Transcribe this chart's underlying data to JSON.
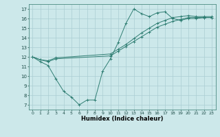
{
  "title": "",
  "xlabel": "Humidex (Indice chaleur)",
  "bg_color": "#cce8ea",
  "grid_color": "#aacdd2",
  "line_color": "#2e7d72",
  "xlim": [
    -0.5,
    23.5
  ],
  "ylim": [
    6.5,
    17.5
  ],
  "xticks": [
    0,
    1,
    2,
    3,
    4,
    5,
    6,
    7,
    8,
    9,
    10,
    11,
    12,
    13,
    14,
    15,
    16,
    17,
    18,
    19,
    20,
    21,
    22,
    23
  ],
  "yticks": [
    7,
    8,
    9,
    10,
    11,
    12,
    13,
    14,
    15,
    16,
    17
  ],
  "line1_x": [
    0,
    1,
    2,
    3,
    4,
    5,
    6,
    7,
    8,
    9,
    10,
    11,
    12,
    13,
    14,
    15,
    16,
    17,
    18,
    19,
    20,
    21,
    22,
    23
  ],
  "line1_y": [
    12.0,
    11.5,
    11.1,
    9.7,
    8.4,
    7.8,
    7.0,
    7.5,
    7.5,
    10.5,
    11.8,
    13.5,
    15.5,
    17.0,
    16.5,
    16.2,
    16.6,
    16.7,
    16.0,
    15.8,
    16.0,
    16.0,
    16.1,
    16.1
  ],
  "line2_x": [
    0,
    1,
    2,
    3,
    10,
    11,
    12,
    13,
    14,
    15,
    16,
    17,
    18,
    19,
    20,
    21,
    22,
    23
  ],
  "line2_y": [
    12.0,
    11.7,
    11.5,
    11.8,
    12.1,
    12.6,
    13.1,
    13.6,
    14.1,
    14.6,
    15.1,
    15.4,
    15.7,
    15.9,
    16.1,
    16.1,
    16.1,
    16.1
  ],
  "line3_x": [
    0,
    1,
    2,
    3,
    10,
    11,
    12,
    13,
    14,
    15,
    16,
    17,
    18,
    19,
    20,
    21,
    22,
    23
  ],
  "line3_y": [
    12.0,
    11.7,
    11.6,
    11.9,
    12.3,
    12.8,
    13.3,
    13.9,
    14.5,
    15.0,
    15.5,
    15.8,
    16.1,
    16.2,
    16.3,
    16.2,
    16.2,
    16.2
  ],
  "xlabel_fontsize": 6,
  "tick_fontsize": 4.5
}
